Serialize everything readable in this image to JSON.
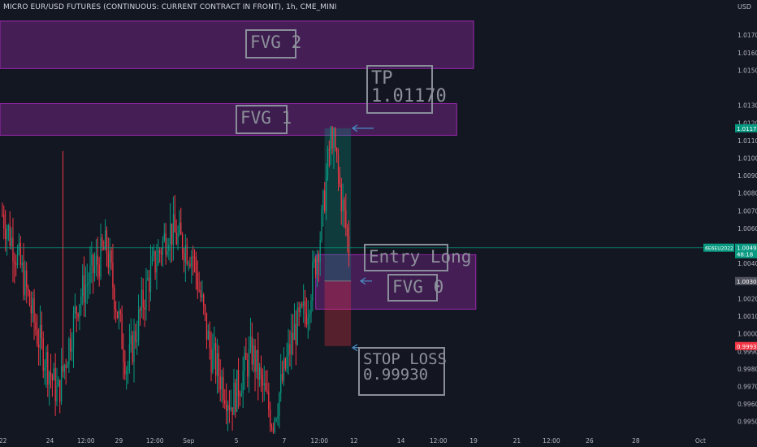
{
  "header": {
    "title": "MICRO EUR/USD FUTURES (CONTINUOUS: CURRENT CONTRACT IN FRONT), 1h, CME_MINI",
    "currency": "USD"
  },
  "chart_data": {
    "type": "candlestick",
    "ylim": [
      0.9942,
      1.019
    ],
    "y_ticks": [
      1.017,
      1.016,
      1.015,
      1.013,
      1.012,
      1.011,
      1.01,
      1.009,
      1.008,
      1.007,
      1.006,
      1.004,
      1.002,
      1.001,
      1.0,
      0.999,
      0.998,
      0.997,
      0.996,
      0.995
    ],
    "y_tick_labels": [
      "1.0170",
      "1.0160",
      "1.0150",
      "1.0130",
      "1.0120",
      "1.0110",
      "1.0100",
      "1.0090",
      "1.0080",
      "1.0070",
      "1.0060",
      "1.0040",
      "1.0020",
      "1.0010",
      "1.0000",
      "0.9990",
      "0.9980",
      "0.9970",
      "0.9960",
      "0.9950"
    ],
    "x_ticks": [
      {
        "label": "22",
        "pos": 0.004
      },
      {
        "label": "24",
        "pos": 0.068
      },
      {
        "label": "12:00",
        "pos": 0.117
      },
      {
        "label": "29",
        "pos": 0.162
      },
      {
        "label": "12:00",
        "pos": 0.211
      },
      {
        "label": "Sep",
        "pos": 0.257
      },
      {
        "label": "5",
        "pos": 0.322
      },
      {
        "label": "7",
        "pos": 0.387
      },
      {
        "label": "12:00",
        "pos": 0.435
      },
      {
        "label": "12",
        "pos": 0.482
      },
      {
        "label": "14",
        "pos": 0.546
      },
      {
        "label": "12:00",
        "pos": 0.597
      },
      {
        "label": "19",
        "pos": 0.645
      },
      {
        "label": "21",
        "pos": 0.704
      },
      {
        "label": "12:00",
        "pos": 0.751
      },
      {
        "label": "26",
        "pos": 0.803
      },
      {
        "label": "28",
        "pos": 0.866
      },
      {
        "label": "Oct",
        "pos": 0.954
      }
    ],
    "candles_ohlc_summary": {
      "first_close": 1.0068,
      "max_high": 1.0117,
      "min_low": 0.9943,
      "last_close": 1.0049,
      "count": 230
    },
    "price_labels": [
      {
        "value": 1.0117,
        "text": "1.0117",
        "color": "#089981"
      },
      {
        "value": 1.0049,
        "text": "1.0049",
        "color": "#089981",
        "extra_top": "6E6EU2022",
        "extra_bottom": "48:18"
      },
      {
        "value": 1.003,
        "text": "1.0030",
        "color": "#50535e"
      },
      {
        "value": 0.9993,
        "text": "0.9993",
        "color": "#f23645"
      }
    ],
    "zones": [
      {
        "name": "FVG 2",
        "y_top": 1.0178,
        "y_bottom": 1.0151,
        "x_end": 0.645
      },
      {
        "name": "FVG 1",
        "y_top": 1.0131,
        "y_bottom": 1.0113,
        "x_end": 0.622
      },
      {
        "name": "FVG 0",
        "y_top": 1.0045,
        "y_bottom": 1.0014,
        "x_start": 0.43,
        "x_end": 0.648
      }
    ],
    "position": {
      "type": "long",
      "entry": 1.003,
      "tp": 1.0117,
      "sl": 0.9993,
      "x_start": 0.442,
      "x_end": 0.478
    },
    "annotations": [
      {
        "id": "tp",
        "lines": [
          "TP",
          "1.01170"
        ]
      },
      {
        "id": "entry",
        "lines": [
          "Entry Long"
        ]
      },
      {
        "id": "fvg0",
        "lines": [
          "FVG 0"
        ]
      },
      {
        "id": "fvg1",
        "lines": [
          "FVG 1"
        ]
      },
      {
        "id": "fvg2",
        "lines": [
          "FVG 2"
        ]
      },
      {
        "id": "sl",
        "lines": [
          "STOP LOSS",
          "0.99930"
        ]
      }
    ],
    "colors": {
      "up": "#089981",
      "down": "#f23645",
      "zone_fill": "rgba(130,40,150,0.45)",
      "zone_border": "#9c27b0",
      "tp_fill": "rgba(8,153,129,0.28)",
      "sl_fill": "rgba(242,54,69,0.30)",
      "grid": "#1e222d",
      "current_line": "#089981",
      "arrow": "#4a90c8"
    },
    "grid": false
  }
}
